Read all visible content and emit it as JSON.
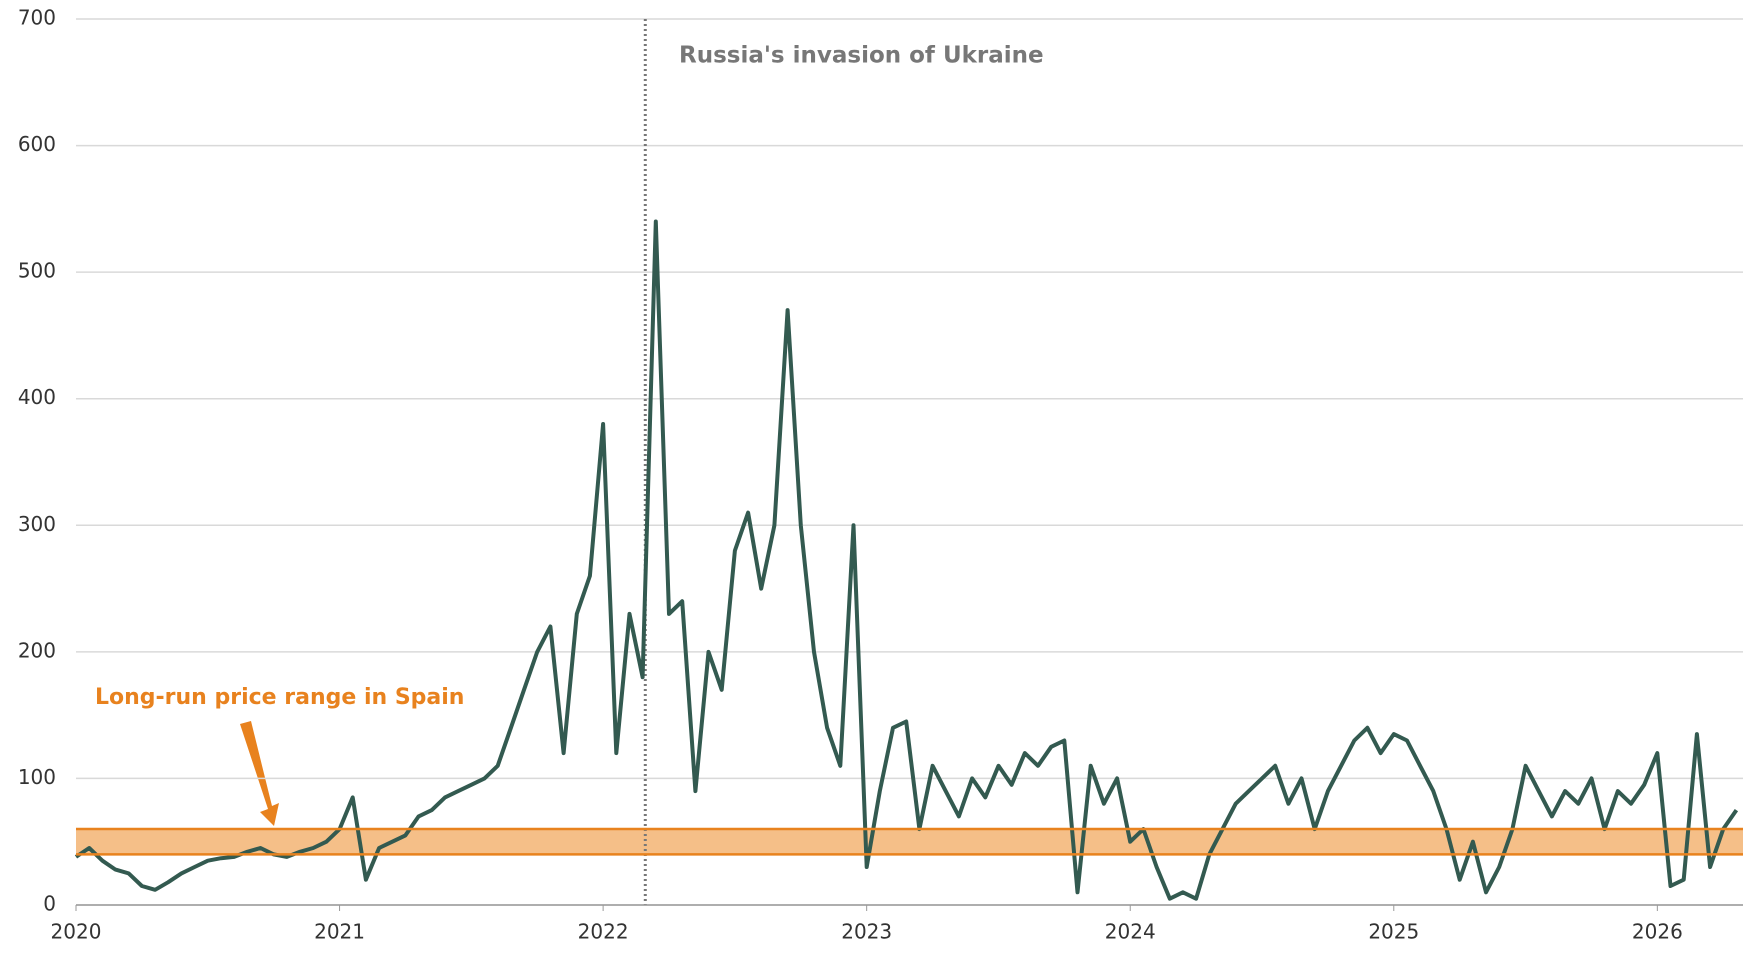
{
  "chart_data": {
    "type": "line",
    "x": [
      2020.0,
      2020.05,
      2020.1,
      2020.15,
      2020.2,
      2020.25,
      2020.3,
      2020.35,
      2020.4,
      2020.45,
      2020.5,
      2020.55,
      2020.6,
      2020.65,
      2020.7,
      2020.75,
      2020.8,
      2020.85,
      2020.9,
      2020.95,
      2021.0,
      2021.05,
      2021.1,
      2021.15,
      2021.2,
      2021.25,
      2021.3,
      2021.35,
      2021.4,
      2021.45,
      2021.5,
      2021.55,
      2021.6,
      2021.65,
      2021.7,
      2021.75,
      2021.8,
      2021.85,
      2021.9,
      2021.95,
      2022.0,
      2022.05,
      2022.1,
      2022.15,
      2022.2,
      2022.25,
      2022.3,
      2022.35,
      2022.4,
      2022.45,
      2022.5,
      2022.55,
      2022.6,
      2022.65,
      2022.7,
      2022.75,
      2022.8,
      2022.85,
      2022.9,
      2022.95,
      2023.0,
      2023.05,
      2023.1,
      2023.15,
      2023.2,
      2023.25,
      2023.3,
      2023.35,
      2023.4,
      2023.45,
      2023.5,
      2023.55,
      2023.6,
      2023.65,
      2023.7,
      2023.75,
      2023.8,
      2023.85,
      2023.9,
      2023.95,
      2024.0,
      2024.05,
      2024.1,
      2024.15,
      2024.2,
      2024.25,
      2024.3,
      2024.35,
      2024.4,
      2024.45,
      2024.5,
      2024.55,
      2024.6,
      2024.65,
      2024.7,
      2024.75,
      2024.8,
      2024.85,
      2024.9,
      2024.95,
      2025.0,
      2025.05,
      2025.1,
      2025.15,
      2025.2,
      2025.25,
      2025.3,
      2025.35,
      2025.4,
      2025.45,
      2025.5,
      2025.55,
      2025.6,
      2025.65,
      2025.7,
      2025.75,
      2025.8,
      2025.85,
      2025.9,
      2025.95,
      2026.0,
      2026.05,
      2026.1,
      2026.15,
      2026.2,
      2026.25,
      2026.3
    ],
    "series": [
      {
        "color": "#335a50",
        "values": [
          38,
          45,
          35,
          28,
          25,
          15,
          12,
          18,
          25,
          30,
          35,
          37,
          38,
          42,
          45,
          40,
          38,
          42,
          45,
          50,
          60,
          85,
          20,
          45,
          50,
          55,
          70,
          75,
          85,
          90,
          95,
          100,
          110,
          140,
          170,
          200,
          220,
          120,
          230,
          260,
          380,
          120,
          230,
          180,
          540,
          230,
          240,
          90,
          200,
          170,
          280,
          310,
          250,
          300,
          470,
          300,
          200,
          140,
          110,
          300,
          30,
          90,
          140,
          145,
          60,
          110,
          90,
          70,
          100,
          85,
          110,
          95,
          120,
          110,
          125,
          130,
          10,
          110,
          80,
          100,
          50,
          60,
          30,
          5,
          10,
          5,
          40,
          60,
          80,
          90,
          100,
          110,
          80,
          100,
          60,
          90,
          110,
          130,
          140,
          120,
          135,
          130,
          110,
          90,
          60,
          20,
          50,
          10,
          30,
          60,
          110,
          90,
          70,
          90,
          80,
          100,
          60,
          90,
          80,
          95,
          120,
          15,
          20,
          135,
          30,
          60,
          75
        ]
      }
    ],
    "xlim": [
      2020,
      2026.325
    ],
    "xticks": [
      2020,
      2021,
      2022,
      2023,
      2024,
      2025,
      2026
    ],
    "ylim": [
      0,
      700
    ],
    "yticks": [
      0,
      100,
      200,
      300,
      400,
      500,
      600,
      700
    ],
    "grid": true,
    "band": {
      "range": [
        40,
        60
      ],
      "label": "Long-run price range in Spain",
      "color": "#f5bf88",
      "edge_color": "#e8821e"
    },
    "vline": {
      "x": 2022.16,
      "label": "Russia's invasion of Ukraine"
    }
  }
}
